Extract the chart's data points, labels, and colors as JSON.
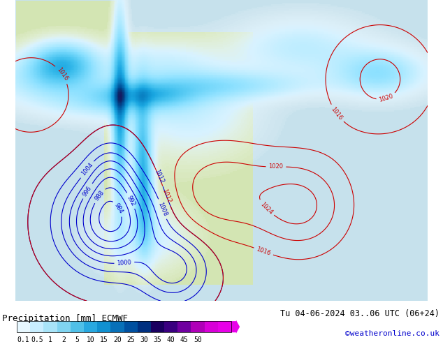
{
  "title_left": "Precipitation [mm] ECMWF",
  "title_right": "Tu 04-06-2024 03..06 UTC (06+24)",
  "credit": "©weatheronline.co.uk",
  "colorbar_values": [
    0.1,
    0.5,
    1,
    2,
    5,
    10,
    15,
    20,
    25,
    30,
    35,
    40,
    45,
    50
  ],
  "colorbar_colors": [
    "#e0f8ff",
    "#c0efff",
    "#a0e4f8",
    "#70d4f0",
    "#40c0e8",
    "#20a8e0",
    "#1090d0",
    "#0870b8",
    "#0050a0",
    "#003080",
    "#200060",
    "#400080",
    "#8000a0",
    "#c000c0",
    "#e000e0"
  ],
  "background_color": "#ffffff",
  "map_bg": "#e8f4e8",
  "figsize": [
    6.34,
    4.9
  ],
  "dpi": 100
}
